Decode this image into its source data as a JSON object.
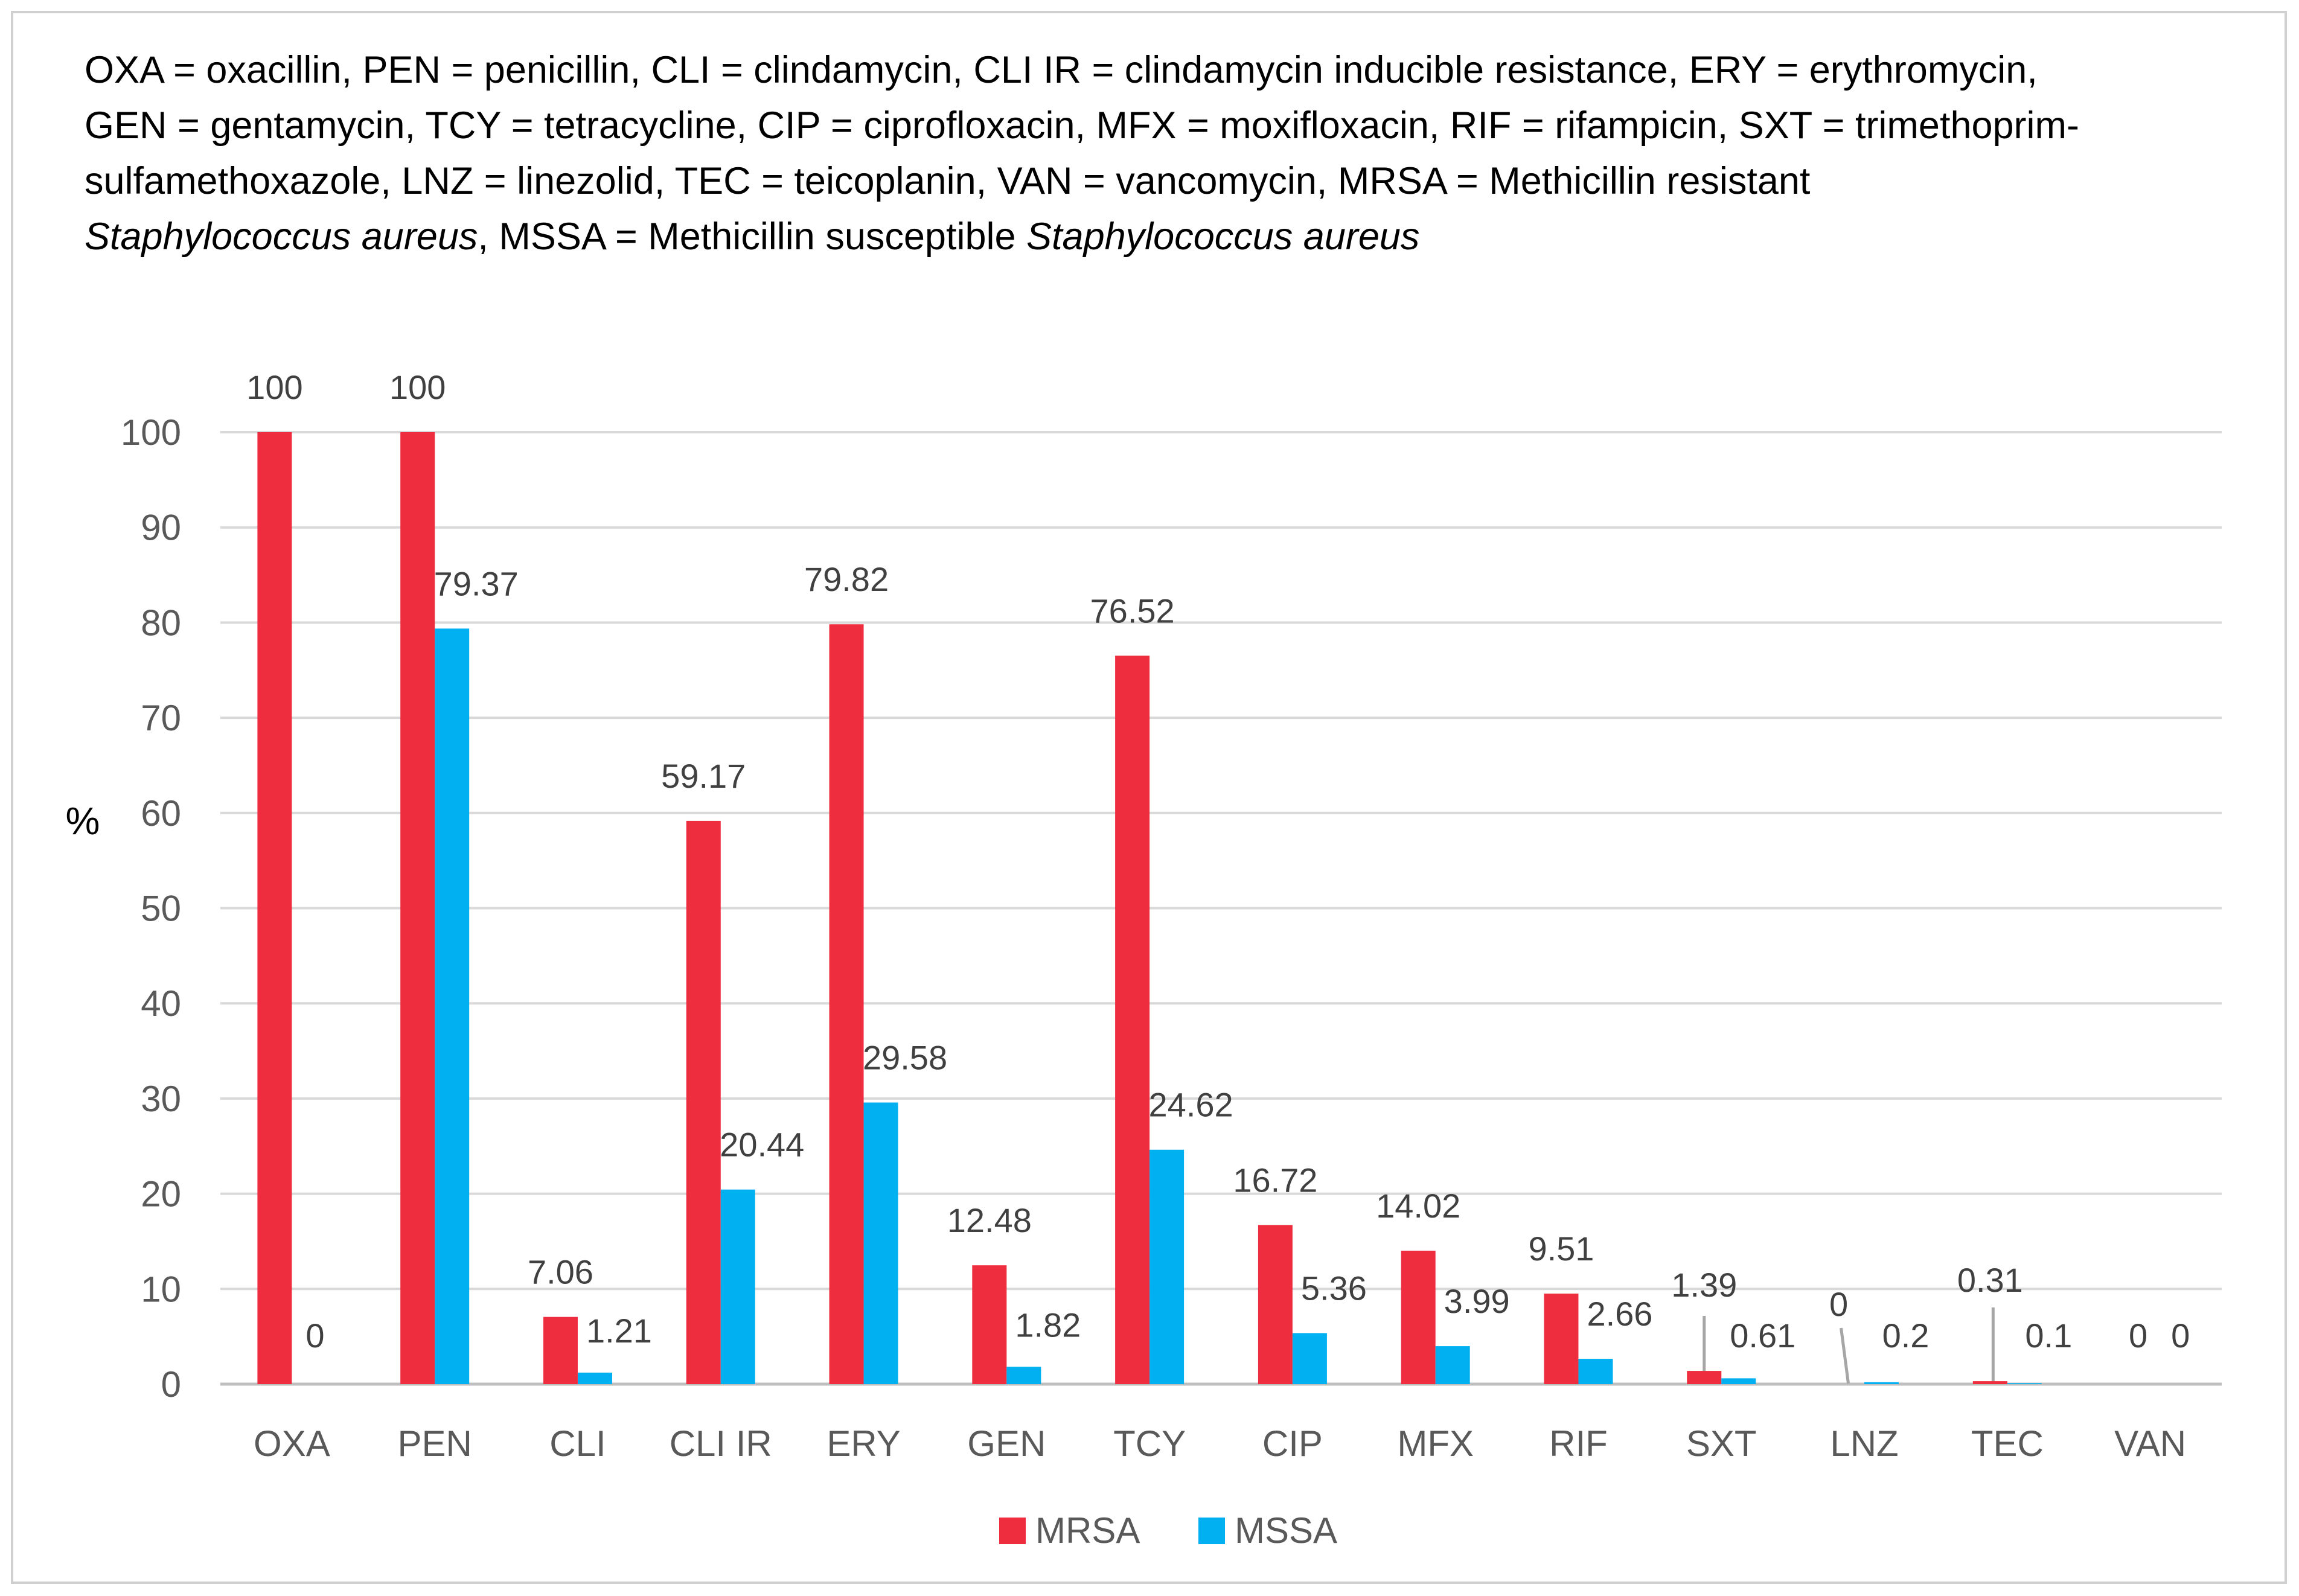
{
  "caption": {
    "line1": "OXA = oxacillin, PEN = penicillin, CLI = clindamycin, CLI IR = clindamycin inducible resistance, ERY = erythromycin,",
    "line2": "GEN = gentamycin, TCY = tetracycline, CIP = ciprofloxacin, MFX = moxifloxacin, RIF = rifampicin, SXT = trimethoprim-",
    "line3": "sulfamethoxazole, LNZ = linezolid, TEC = teicoplanin, VAN = vancomycin, MRSA = Methicillin resistant",
    "line4_species": "Staphylococcus aureus",
    "line4_mid": ", MSSA = Methicillin susceptible ",
    "line4_species2": "Staphylococcus aureus"
  },
  "chart_data": {
    "type": "bar",
    "title": "",
    "xlabel": "",
    "ylabel": "%",
    "ylim": [
      0,
      100
    ],
    "yticks": [
      0,
      10,
      20,
      30,
      40,
      50,
      60,
      70,
      80,
      90,
      100
    ],
    "grid": true,
    "legend_position": "bottom",
    "categories": [
      "OXA",
      "PEN",
      "CLI",
      "CLI IR",
      "ERY",
      "GEN",
      "TCY",
      "CIP",
      "MFX",
      "RIF",
      "SXT",
      "LNZ",
      "TEC",
      "VAN"
    ],
    "series": [
      {
        "name": "MRSA",
        "color": "#EE2D3F",
        "values": [
          100,
          100,
          7.06,
          59.17,
          79.82,
          12.48,
          76.52,
          16.72,
          14.02,
          9.51,
          1.39,
          0,
          0.31,
          0
        ],
        "labels": [
          "100",
          "100",
          "7.06",
          "59.17",
          "79.82",
          "12.48",
          "76.52",
          "16.72",
          "14.02",
          "9.51",
          "1.39",
          "0",
          "0.31",
          "0"
        ]
      },
      {
        "name": "MSSA",
        "color": "#00B0F0",
        "values": [
          0,
          79.37,
          1.21,
          20.44,
          29.58,
          1.82,
          24.62,
          5.36,
          3.99,
          2.66,
          0.61,
          0.2,
          0.1,
          0
        ],
        "labels": [
          "0",
          "79.37",
          "1.21",
          "20.44",
          "29.58",
          "1.82",
          "24.62",
          "5.36",
          "3.99",
          "2.66",
          "0.61",
          "0.2",
          "0.1",
          "0"
        ]
      }
    ],
    "leader_line_color": "#A6A6A6",
    "grid_color": "#D9D9D9",
    "axis_color": "#BFBFBF"
  }
}
